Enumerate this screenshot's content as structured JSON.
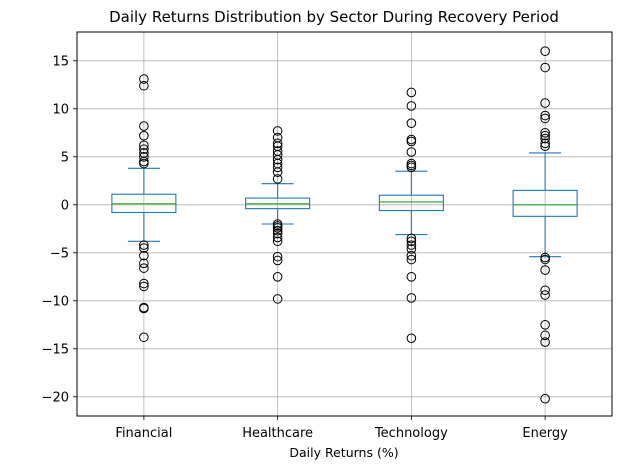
{
  "chart_data": {
    "type": "box",
    "title": "Daily Returns Distribution by Sector During Recovery Period",
    "xlabel": "Daily Returns (%)",
    "ylabel": "",
    "ylim": [
      -22,
      18
    ],
    "yticks": [
      -20,
      -15,
      -10,
      -5,
      0,
      5,
      10,
      15
    ],
    "ytick_labels": [
      "−20",
      "−15",
      "−10",
      "−5",
      "0",
      "5",
      "10",
      "15"
    ],
    "grid": true,
    "colors": {
      "box": "#1f77b4",
      "median": "#2ca02c",
      "grid": "#b0b0b0",
      "outlier": "#000000"
    },
    "categories": [
      "Financial",
      "Healthcare",
      "Technology",
      "Energy"
    ],
    "series": [
      {
        "category": "Financial",
        "q1": -0.8,
        "median": 0.1,
        "q3": 1.1,
        "whisker_low": -3.8,
        "whisker_high": 3.8,
        "outliers": [
          13.1,
          12.4,
          8.2,
          7.2,
          6.2,
          5.8,
          5.4,
          5.0,
          4.5,
          4.3,
          -4.2,
          -4.5,
          -5.3,
          -6.1,
          -6.6,
          -8.2,
          -8.5,
          -10.7,
          -10.8,
          -13.8
        ]
      },
      {
        "category": "Healthcare",
        "q1": -0.4,
        "median": 0.1,
        "q3": 0.7,
        "whisker_low": -2.0,
        "whisker_high": 2.2,
        "outliers": [
          7.7,
          7.0,
          6.4,
          6.1,
          5.6,
          5.2,
          4.7,
          4.3,
          3.9,
          3.4,
          2.7,
          -2.0,
          -2.2,
          -2.4,
          -2.7,
          -3.0,
          -3.4,
          -3.8,
          -5.4,
          -5.8,
          -7.5,
          -9.8
        ]
      },
      {
        "category": "Technology",
        "q1": -0.6,
        "median": 0.3,
        "q3": 1.0,
        "whisker_low": -3.1,
        "whisker_high": 3.5,
        "outliers": [
          11.7,
          10.3,
          8.5,
          6.8,
          6.6,
          5.5,
          4.3,
          4.1,
          3.9,
          -3.5,
          -3.8,
          -4.2,
          -4.6,
          -5.3,
          -5.7,
          -7.5,
          -9.7,
          -13.9
        ]
      },
      {
        "category": "Energy",
        "q1": -1.2,
        "median": 0.0,
        "q3": 1.5,
        "whisker_low": -5.4,
        "whisker_high": 5.4,
        "outliers": [
          16.0,
          14.3,
          10.6,
          9.3,
          9.0,
          7.5,
          7.2,
          6.9,
          6.4,
          6.1,
          -5.5,
          -5.7,
          -6.8,
          -8.9,
          -9.4,
          -12.5,
          -13.6,
          -14.3,
          -20.2
        ]
      }
    ]
  }
}
